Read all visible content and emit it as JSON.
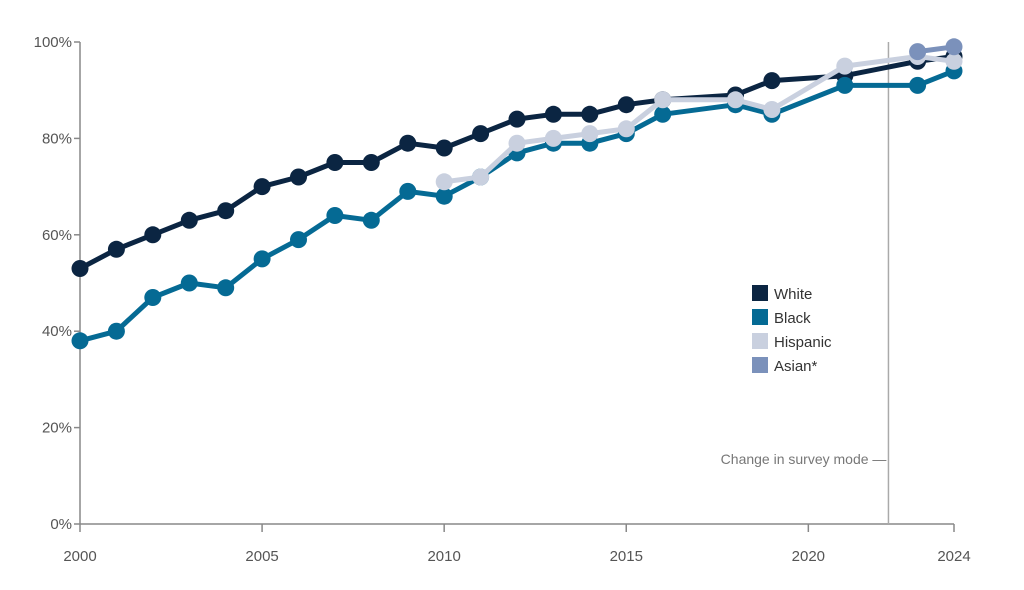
{
  "chart_data": {
    "type": "line",
    "title": "",
    "xlabel": "",
    "ylabel": "",
    "xlim": [
      2000,
      2024
    ],
    "ylim": [
      0,
      100
    ],
    "y_ticks": [
      0,
      20,
      40,
      60,
      80,
      100
    ],
    "y_tick_labels": [
      "0%",
      "20%",
      "40%",
      "60%",
      "80%",
      "100%"
    ],
    "x_ticks": [
      2000,
      2005,
      2010,
      2015,
      2020,
      2024
    ],
    "x_tick_labels": [
      "2000",
      "2005",
      "2010",
      "2015",
      "2020",
      "2024"
    ],
    "grid": false,
    "legend_position": "right",
    "series": [
      {
        "name": "White",
        "color": "#0b2542",
        "points": [
          [
            2000,
            53
          ],
          [
            2001,
            57
          ],
          [
            2002,
            60
          ],
          [
            2003,
            63
          ],
          [
            2004,
            65
          ],
          [
            2005,
            70
          ],
          [
            2006,
            72
          ],
          [
            2007,
            75
          ],
          [
            2008,
            75
          ],
          [
            2009,
            79
          ],
          [
            2010,
            78
          ],
          [
            2011,
            81
          ],
          [
            2012,
            84
          ],
          [
            2013,
            85
          ],
          [
            2014,
            85
          ],
          [
            2015,
            87
          ],
          [
            2016,
            88
          ],
          [
            2018,
            89
          ],
          [
            2019,
            92
          ],
          [
            2021,
            93
          ],
          [
            2023,
            96
          ],
          [
            2024,
            97
          ]
        ]
      },
      {
        "name": "Black",
        "color": "#056a94",
        "points": [
          [
            2000,
            38
          ],
          [
            2001,
            40
          ],
          [
            2002,
            47
          ],
          [
            2003,
            50
          ],
          [
            2004,
            49
          ],
          [
            2005,
            55
          ],
          [
            2006,
            59
          ],
          [
            2007,
            64
          ],
          [
            2008,
            63
          ],
          [
            2009,
            69
          ],
          [
            2010,
            68
          ],
          [
            2011,
            72
          ],
          [
            2012,
            77
          ],
          [
            2013,
            79
          ],
          [
            2014,
            79
          ],
          [
            2015,
            81
          ],
          [
            2016,
            85
          ],
          [
            2018,
            87
          ],
          [
            2019,
            85
          ],
          [
            2021,
            91
          ],
          [
            2023,
            91
          ],
          [
            2024,
            94
          ]
        ]
      },
      {
        "name": "Hispanic",
        "color": "#c9d0df",
        "points": [
          [
            2010,
            71
          ],
          [
            2011,
            72
          ],
          [
            2012,
            79
          ],
          [
            2013,
            80
          ],
          [
            2014,
            81
          ],
          [
            2015,
            82
          ],
          [
            2016,
            88
          ],
          [
            2018,
            88
          ],
          [
            2019,
            86
          ],
          [
            2021,
            95
          ],
          [
            2023,
            97
          ],
          [
            2024,
            96
          ]
        ]
      },
      {
        "name": "Asian*",
        "color": "#7b91bb",
        "points": [
          [
            2023,
            98
          ],
          [
            2024,
            99
          ]
        ]
      }
    ],
    "annotation": {
      "text": "Change in survey mode —",
      "x": 2022.2
    }
  }
}
